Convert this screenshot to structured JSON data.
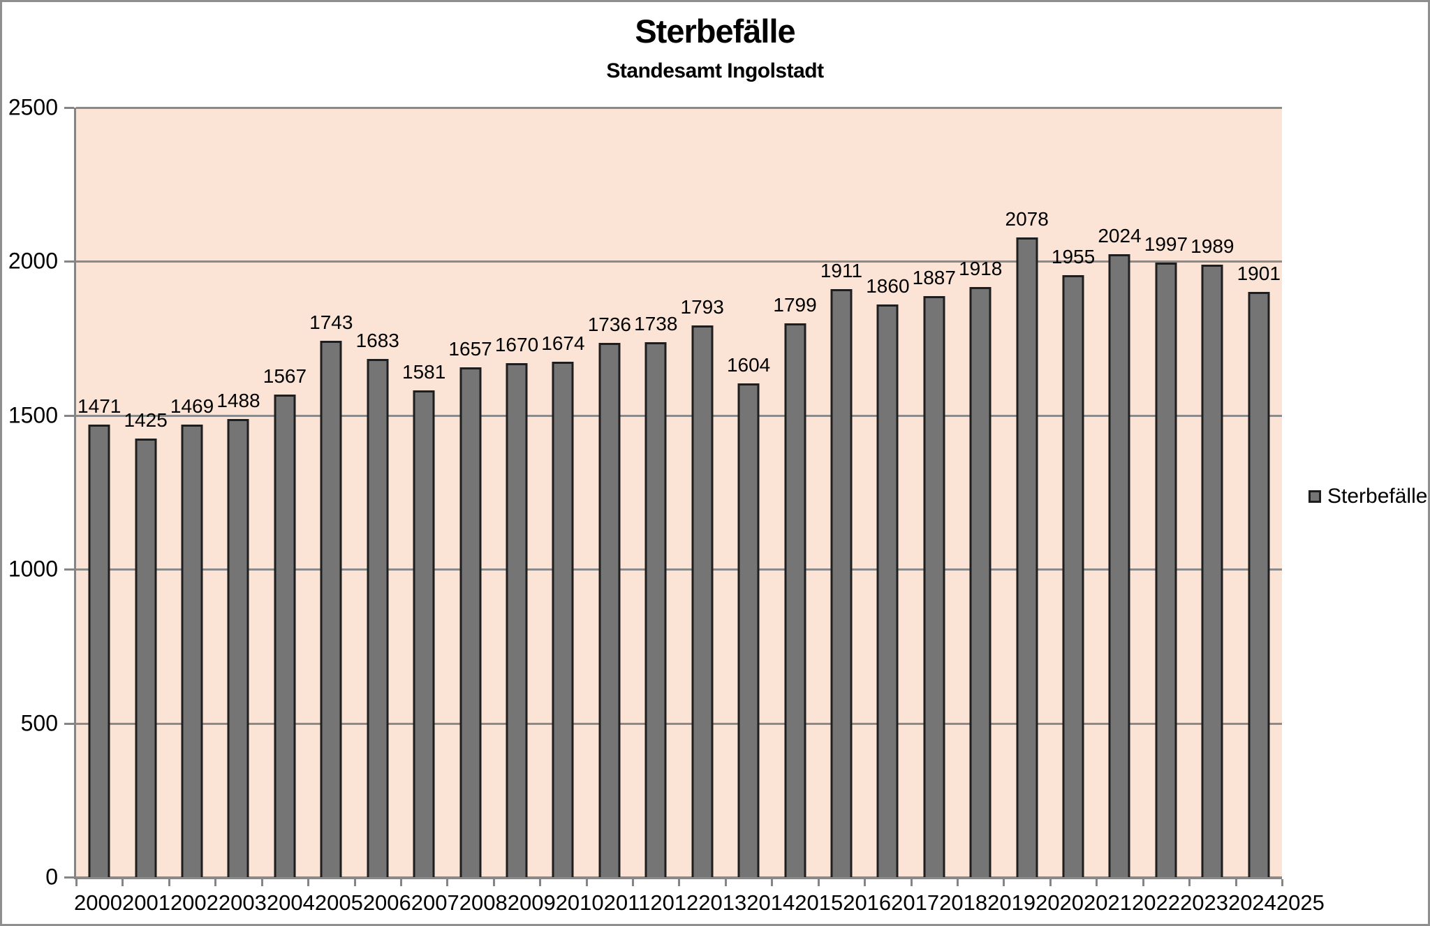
{
  "chart_data": {
    "type": "bar",
    "title": "Sterbefälle",
    "subtitle": "Standesamt Ingolstadt",
    "categories": [
      "2000",
      "2001",
      "2002",
      "2003",
      "2004",
      "2005",
      "2006",
      "2007",
      "2008",
      "2009",
      "2010",
      "2011",
      "2012",
      "2013",
      "2014",
      "2015",
      "2016",
      "2017",
      "2018",
      "2019",
      "2020",
      "2021",
      "2022",
      "2023",
      "2024",
      "2025"
    ],
    "series": [
      {
        "name": "Sterbefälle",
        "values": [
          1471,
          1425,
          1469,
          1488,
          1567,
          1743,
          1683,
          1581,
          1657,
          1670,
          1674,
          1736,
          1738,
          1793,
          1604,
          1799,
          1911,
          1860,
          1887,
          1918,
          2078,
          1955,
          2024,
          1997,
          1989,
          1901
        ]
      }
    ],
    "xlabel": "",
    "ylabel": "",
    "ylim": [
      0,
      2500
    ],
    "yticks": [
      0,
      500,
      1000,
      1500,
      2000,
      2500
    ],
    "grid": true,
    "data_labels": true,
    "legend_position": "right",
    "colors": {
      "plot_background": "#fbe4d5",
      "bar_fill": "#757575",
      "bar_border": "#1e1e1e",
      "gridline": "#8a8a8a",
      "axis": "#858585",
      "text": "#000000",
      "outer_border": "#8f8f8f",
      "page_background": "#ffffff"
    }
  },
  "legend": {
    "label": "Sterbefälle"
  }
}
